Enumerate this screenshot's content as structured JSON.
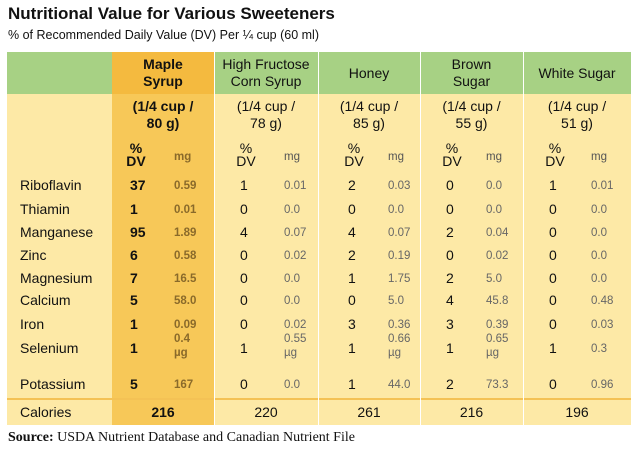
{
  "title": "Nutritional Value for Various Sweeteners",
  "subtitle": "% of Recommended Daily Value (DV) Per ¼  cup (60 ml)",
  "columns": [
    {
      "name_line1": "Maple",
      "name_line2": "Syrup",
      "serving_line1": "(1/4 cup /",
      "serving_line2": "80 g)",
      "unit_dv": "%",
      "unit_dv2": "DV",
      "unit_mg": "mg",
      "calories": "216"
    },
    {
      "name_line1": "High Fructose",
      "name_line2": "Corn Syrup",
      "serving_line1": "(1/4 cup /",
      "serving_line2": "78 g)",
      "unit_dv": "%",
      "unit_dv2": "DV",
      "unit_mg": "mg",
      "calories": "220"
    },
    {
      "name_line1": "Honey",
      "name_line2": "",
      "serving_line1": "(1/4 cup /",
      "serving_line2": "85 g)",
      "unit_dv": "%",
      "unit_dv2": "DV",
      "unit_mg": "mg",
      "calories": "261"
    },
    {
      "name_line1": "Brown",
      "name_line2": "Sugar",
      "serving_line1": "(1/4 cup /",
      "serving_line2": "55 g)",
      "unit_dv": "%",
      "unit_dv2": "DV",
      "unit_mg": "mg",
      "calories": "216"
    },
    {
      "name_line1": "White Sugar",
      "name_line2": "",
      "serving_line1": "(1/4 cup /",
      "serving_line2": "51 g)",
      "unit_dv": "%",
      "unit_dv2": "DV",
      "unit_mg": "mg",
      "calories": "196"
    }
  ],
  "rows": [
    {
      "label": "Riboflavin",
      "values": [
        [
          "37",
          "0.59"
        ],
        [
          "1",
          "0.01"
        ],
        [
          "2",
          "0.03"
        ],
        [
          "0",
          "0.0"
        ],
        [
          "1",
          "0.01"
        ]
      ]
    },
    {
      "label": "Thiamin",
      "values": [
        [
          "1",
          "0.01"
        ],
        [
          "0",
          "0.0"
        ],
        [
          "0",
          "0.0"
        ],
        [
          "0",
          "0.0"
        ],
        [
          "0",
          "0.0"
        ]
      ]
    },
    {
      "label": "Manganese",
      "values": [
        [
          "95",
          "1.89"
        ],
        [
          "4",
          "0.07"
        ],
        [
          "4",
          "0.07"
        ],
        [
          "2",
          "0.04"
        ],
        [
          "0",
          "0.0"
        ]
      ]
    },
    {
      "label": "Zinc",
      "values": [
        [
          "6",
          "0.58"
        ],
        [
          "0",
          "0.02"
        ],
        [
          "2",
          "0.19"
        ],
        [
          "0",
          "0.02"
        ],
        [
          "0",
          "0.0"
        ]
      ]
    },
    {
      "label": "Magnesium",
      "values": [
        [
          "7",
          "16.5"
        ],
        [
          "0",
          "0.0"
        ],
        [
          "1",
          "1.75"
        ],
        [
          "2",
          "5.0"
        ],
        [
          "0",
          "0.0"
        ]
      ]
    },
    {
      "label": "Calcium",
      "values": [
        [
          "5",
          "58.0"
        ],
        [
          "0",
          "0.0"
        ],
        [
          "0",
          "5.0"
        ],
        [
          "4",
          "45.8"
        ],
        [
          "0",
          "0.48"
        ]
      ]
    },
    {
      "label": "Iron",
      "values": [
        [
          "1",
          "0.09"
        ],
        [
          "0",
          "0.02"
        ],
        [
          "3",
          "0.36"
        ],
        [
          "3",
          "0.39"
        ],
        [
          "0",
          "0.03"
        ]
      ]
    },
    {
      "label": "Selenium",
      "values": [
        [
          "1",
          "0.4 µg"
        ],
        [
          "1",
          "0.55 µg"
        ],
        [
          "1",
          "0.66 µg"
        ],
        [
          "1",
          "0.65 µg"
        ],
        [
          "1",
          "0.3"
        ]
      ]
    },
    {
      "label": "Potassium",
      "values": [
        [
          "5",
          "167"
        ],
        [
          "0",
          "0.0"
        ],
        [
          "1",
          "44.0"
        ],
        [
          "2",
          "73.3"
        ],
        [
          "0",
          "0.96"
        ]
      ]
    }
  ],
  "calories_label": "Calories",
  "source_label": "Source:",
  "source_text": " USDA Nutrient Database and Canadian Nutrient File",
  "colors": {
    "header_green": "#a7d184",
    "table_bg": "#fde9a6",
    "maple_highlight": "#f7c858"
  }
}
